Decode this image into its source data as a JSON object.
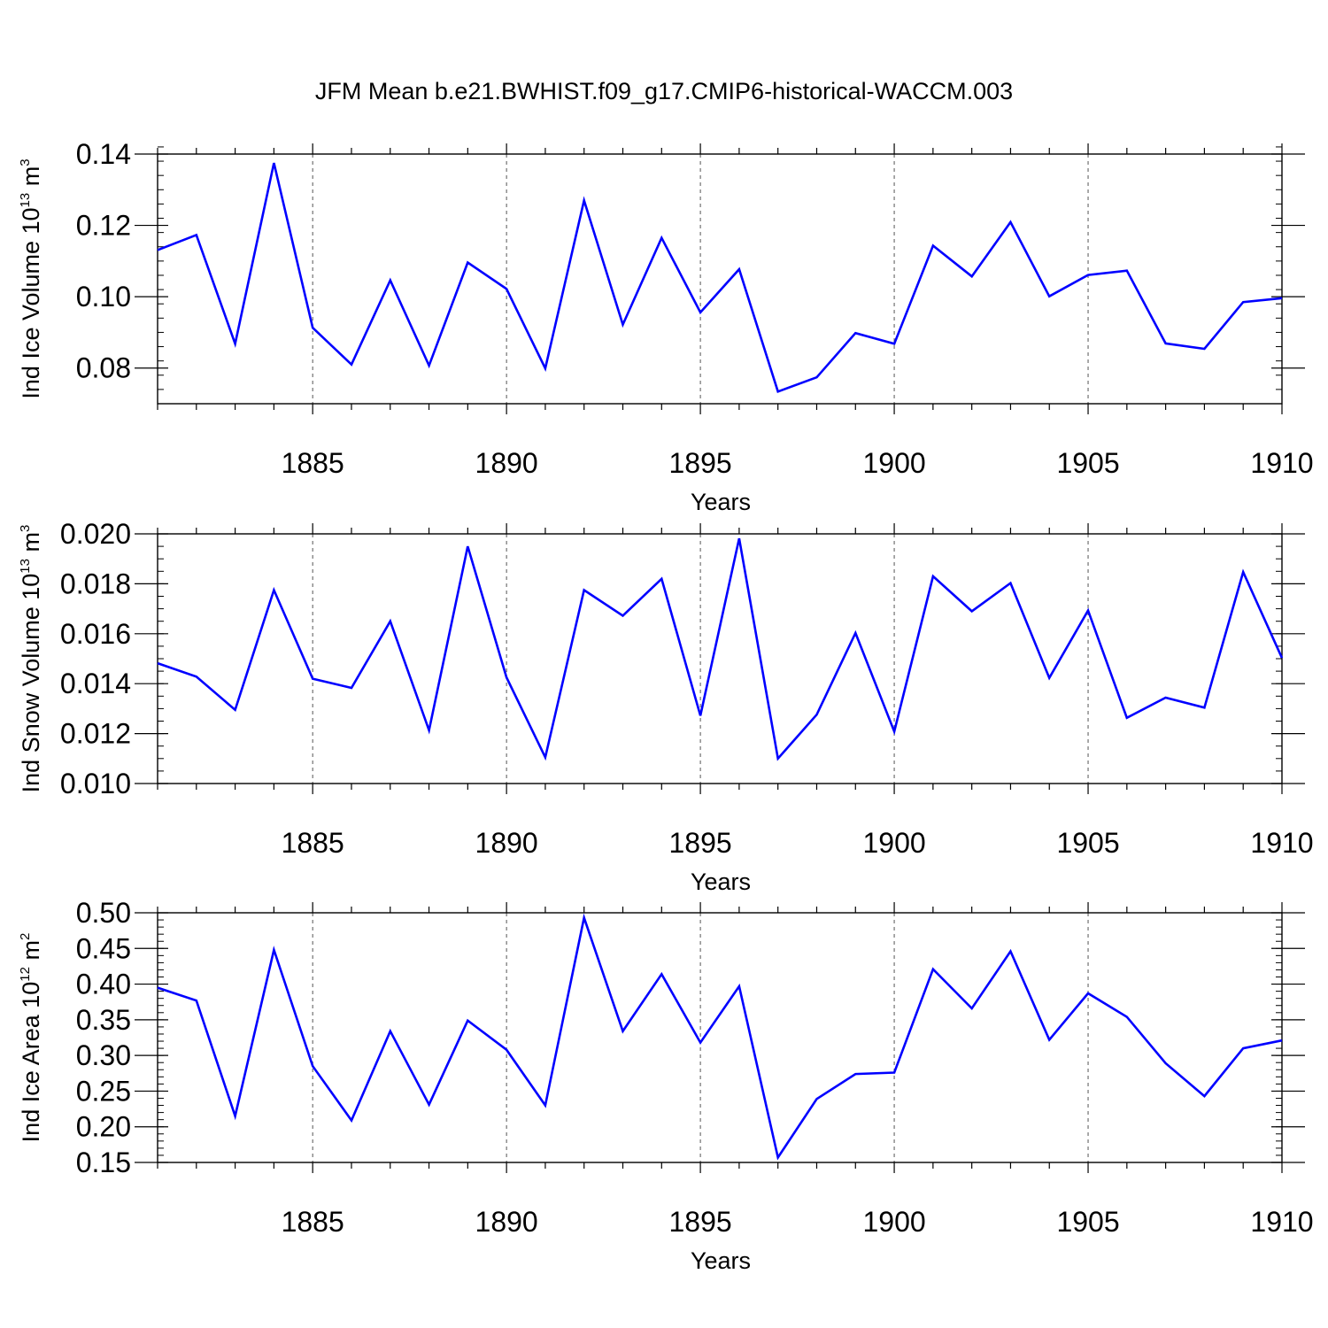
{
  "figure": {
    "title": "JFM Mean b.e21.BWHIST.f09_g17.CMIP6-historical-WACCM.003",
    "line_color": "#0000ff"
  },
  "chart_data": [
    {
      "type": "line",
      "ylabel_parts": [
        "Ind Ice Volume 10",
        "13",
        " m",
        "3"
      ],
      "xlabel": "Years",
      "xlim": [
        1881,
        1910
      ],
      "ylim": [
        0.07,
        0.14
      ],
      "x_major_ticks": [
        1885,
        1890,
        1895,
        1900,
        1905,
        1910
      ],
      "y_major_ticks": [
        0.08,
        0.1,
        0.12,
        0.14
      ],
      "y_tick_labels": [
        "0.08",
        "0.10",
        "0.12",
        "0.14"
      ],
      "y_minor_step": 0.004,
      "x": [
        1881,
        1882,
        1883,
        1884,
        1885,
        1886,
        1887,
        1888,
        1889,
        1890,
        1891,
        1892,
        1893,
        1894,
        1895,
        1896,
        1897,
        1898,
        1899,
        1900,
        1901,
        1902,
        1903,
        1904,
        1905,
        1906,
        1907,
        1908,
        1909,
        1910
      ],
      "values": [
        0.1131,
        0.1173,
        0.0868,
        0.1375,
        0.0913,
        0.081,
        0.1046,
        0.0807,
        0.1096,
        0.1022,
        0.0799,
        0.127,
        0.0922,
        0.1165,
        0.0956,
        0.1077,
        0.0734,
        0.0774,
        0.0898,
        0.0868,
        0.1143,
        0.1057,
        0.1209,
        0.1001,
        0.1061,
        0.1073,
        0.0869,
        0.0854,
        0.0985,
        0.0996
      ]
    },
    {
      "type": "line",
      "ylabel_parts": [
        "Ind Snow Volume 10",
        "13",
        " m",
        "3"
      ],
      "xlabel": "Years",
      "xlim": [
        1881,
        1910
      ],
      "ylim": [
        0.01,
        0.02
      ],
      "x_major_ticks": [
        1885,
        1890,
        1895,
        1900,
        1905,
        1910
      ],
      "y_major_ticks": [
        0.01,
        0.012,
        0.014,
        0.016,
        0.018,
        0.02
      ],
      "y_tick_labels": [
        "0.010",
        "0.012",
        "0.014",
        "0.016",
        "0.018",
        "0.020"
      ],
      "y_minor_step": 0.0005,
      "x": [
        1881,
        1882,
        1883,
        1884,
        1885,
        1886,
        1887,
        1888,
        1889,
        1890,
        1891,
        1892,
        1893,
        1894,
        1895,
        1896,
        1897,
        1898,
        1899,
        1900,
        1901,
        1902,
        1903,
        1904,
        1905,
        1906,
        1907,
        1908,
        1909,
        1910
      ],
      "values": [
        0.01482,
        0.01428,
        0.01295,
        0.01775,
        0.0142,
        0.01383,
        0.0165,
        0.01213,
        0.0195,
        0.01425,
        0.01105,
        0.01775,
        0.01672,
        0.0182,
        0.01272,
        0.01982,
        0.011,
        0.01276,
        0.01603,
        0.01208,
        0.0183,
        0.0169,
        0.01803,
        0.01423,
        0.01693,
        0.01263,
        0.01344,
        0.01304,
        0.01847,
        0.01503
      ]
    },
    {
      "type": "line",
      "ylabel_parts": [
        "Ind Ice Area 10",
        "12",
        " m",
        "2"
      ],
      "xlabel": "Years",
      "xlim": [
        1881,
        1910
      ],
      "ylim": [
        0.15,
        0.5
      ],
      "x_major_ticks": [
        1885,
        1890,
        1895,
        1900,
        1905,
        1910
      ],
      "y_major_ticks": [
        0.15,
        0.2,
        0.25,
        0.3,
        0.35,
        0.4,
        0.45,
        0.5
      ],
      "y_tick_labels": [
        "0.15",
        "0.20",
        "0.25",
        "0.30",
        "0.35",
        "0.40",
        "0.45",
        "0.50"
      ],
      "y_minor_step": 0.01,
      "x": [
        1881,
        1882,
        1883,
        1884,
        1885,
        1886,
        1887,
        1888,
        1889,
        1890,
        1891,
        1892,
        1893,
        1894,
        1895,
        1896,
        1897,
        1898,
        1899,
        1900,
        1901,
        1902,
        1903,
        1904,
        1905,
        1906,
        1907,
        1908,
        1909,
        1910
      ],
      "values": [
        0.395,
        0.377,
        0.215,
        0.448,
        0.285,
        0.209,
        0.334,
        0.231,
        0.349,
        0.308,
        0.23,
        0.493,
        0.334,
        0.414,
        0.318,
        0.397,
        0.157,
        0.239,
        0.274,
        0.276,
        0.421,
        0.366,
        0.446,
        0.322,
        0.387,
        0.354,
        0.289,
        0.243,
        0.31,
        0.321
      ]
    }
  ]
}
